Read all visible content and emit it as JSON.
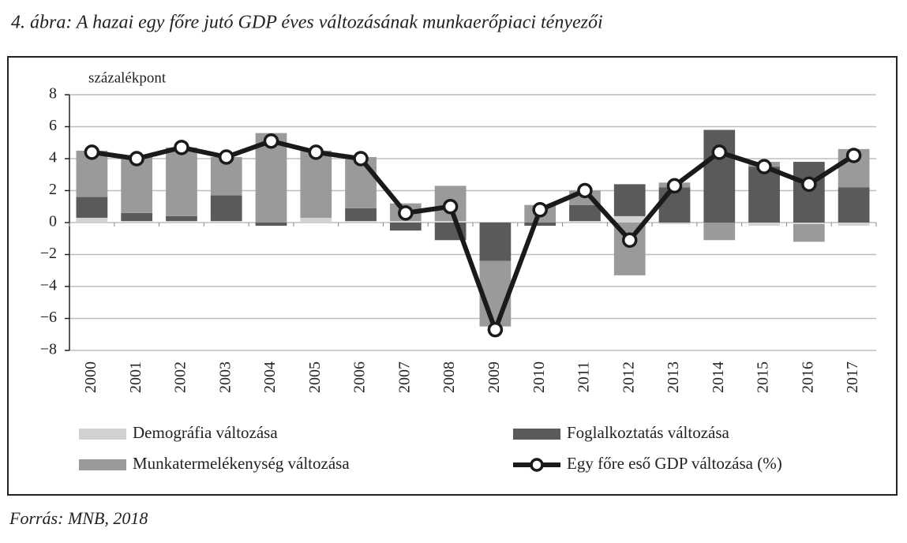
{
  "chart_data": {
    "type": "bar_line",
    "title": "4. ábra: A hazai egy főre jutó GDP éves változásának munkaerőpiaci tényezői",
    "y_label": "százalékpont",
    "source": "Forrás: MNB, 2018",
    "categories": [
      "2000",
      "2001",
      "2002",
      "2003",
      "2004",
      "2005",
      "2006",
      "2007",
      "2008",
      "2009",
      "2010",
      "2011",
      "2012",
      "2013",
      "2014",
      "2015",
      "2016",
      "2017"
    ],
    "series": [
      {
        "name": "Demográfia változása",
        "type": "bar",
        "color": "#d2d2d2",
        "values": [
          0.3,
          0.1,
          0.1,
          0.1,
          0,
          0.3,
          0.1,
          0.1,
          0.1,
          0,
          0,
          0.1,
          0.4,
          -0.1,
          0,
          -0.2,
          -0.1,
          -0.2
        ]
      },
      {
        "name": "Foglalkoztatás változása",
        "type": "bar",
        "color": "#5a5a5a",
        "values": [
          1.3,
          0.5,
          0.3,
          1.6,
          -0.2,
          0,
          0.8,
          -0.5,
          -1.1,
          -2.4,
          -0.2,
          1.0,
          2.0,
          2.2,
          5.8,
          3.5,
          3.8,
          2.2
        ]
      },
      {
        "name": "Munkatermelékenység változása",
        "type": "bar",
        "color": "#9a9a9a",
        "values": [
          2.9,
          3.5,
          4.3,
          2.4,
          5.6,
          4.2,
          3.2,
          1.1,
          2.2,
          -4.1,
          1.1,
          0.9,
          -3.3,
          0.3,
          -1.1,
          0.3,
          -1.1,
          2.4
        ]
      },
      {
        "name": "Egy főre eső GDP változása (%)",
        "type": "line",
        "color": "#1a1a1a",
        "values": [
          4.4,
          4.0,
          4.7,
          4.1,
          5.1,
          4.4,
          4.0,
          0.6,
          1.0,
          -6.7,
          0.8,
          2.0,
          -1.1,
          2.3,
          4.4,
          3.5,
          2.4,
          4.2
        ]
      }
    ],
    "ylim": [
      -8,
      8
    ],
    "yticks": [
      {
        "value": -8,
        "label": "−8"
      },
      {
        "value": -6,
        "label": "−6"
      },
      {
        "value": -4,
        "label": "−4"
      },
      {
        "value": -2,
        "label": "−2"
      },
      0,
      2,
      4,
      6,
      8
    ],
    "grid": true
  }
}
